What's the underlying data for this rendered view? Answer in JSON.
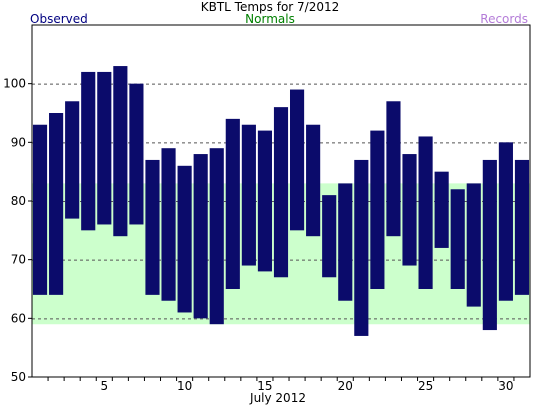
{
  "chart_data": {
    "type": "bar",
    "title": "KBTL Temps for 7/2012",
    "xlabel": "July 2012",
    "ylabel": "",
    "ylim": [
      50,
      110
    ],
    "xlim": [
      0.5,
      31.5
    ],
    "yticks": [
      50,
      60,
      70,
      80,
      90,
      100
    ],
    "xticks": [
      5,
      10,
      15,
      20,
      25,
      30
    ],
    "grid": "horizontal dashed",
    "legend": {
      "observed": "Observed",
      "normals": "Normals",
      "records": "Records"
    },
    "days": [
      1,
      2,
      3,
      4,
      5,
      6,
      7,
      8,
      9,
      10,
      11,
      12,
      13,
      14,
      15,
      16,
      17,
      18,
      19,
      20,
      21,
      22,
      23,
      24,
      25,
      26,
      27,
      28,
      29,
      30,
      31
    ],
    "series": [
      {
        "name": "Observed",
        "kind": "high-low bars",
        "high": [
          93,
          95,
          97,
          102,
          102,
          103,
          100,
          87,
          89,
          86,
          88,
          89,
          94,
          93,
          92,
          96,
          99,
          93,
          81,
          83,
          87,
          92,
          97,
          88,
          91,
          85,
          82,
          83,
          87,
          90,
          87
        ],
        "low": [
          64,
          64,
          77,
          75,
          76,
          74,
          76,
          64,
          63,
          61,
          60,
          59,
          65,
          69,
          68,
          67,
          75,
          74,
          67,
          63,
          57,
          65,
          74,
          69,
          65,
          72,
          65,
          62,
          58,
          63,
          64
        ]
      },
      {
        "name": "Normals",
        "kind": "band",
        "high": [
          83,
          83,
          83,
          83,
          83,
          83,
          83,
          83,
          83,
          83,
          83,
          83,
          83,
          83,
          83,
          83,
          83,
          83,
          83,
          83,
          83,
          83,
          83,
          83,
          83,
          83,
          83,
          83,
          83,
          83,
          83
        ],
        "low": [
          59,
          59,
          59,
          59,
          59,
          59,
          59,
          59,
          59,
          59,
          59,
          59,
          59,
          59,
          59,
          59,
          59,
          59,
          59,
          59,
          59,
          59,
          59,
          59,
          59,
          59,
          59,
          59,
          59,
          59,
          59
        ]
      }
    ],
    "colors": {
      "observed": "#0b0b6b",
      "normals_fill": "#ccffcc",
      "observed_label": "#000080",
      "normals_label": "#008000",
      "records_label": "#b47cd8",
      "grid": "#555555",
      "axis": "#000000"
    }
  }
}
